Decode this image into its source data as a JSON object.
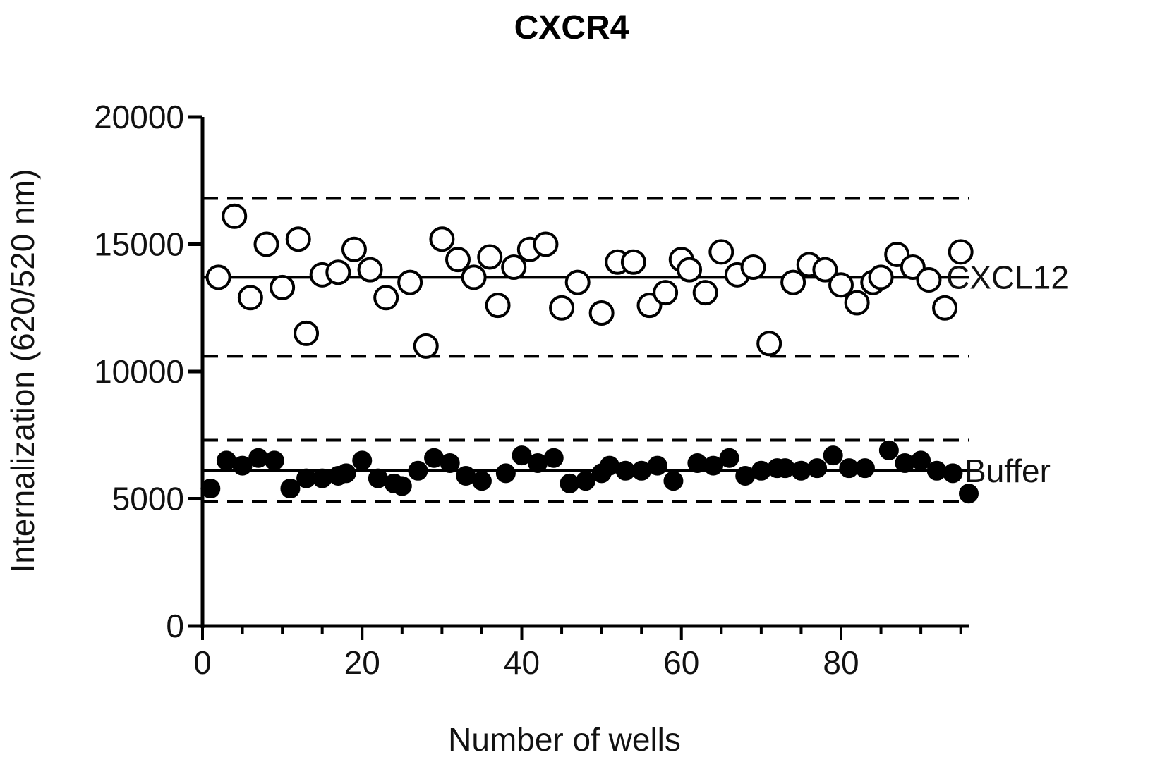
{
  "chart_data": {
    "type": "scatter",
    "title": "CXCR4",
    "xlabel": "Number of wells",
    "ylabel": "Internalization (620/520 nm)",
    "xlim": [
      0,
      96
    ],
    "ylim": [
      0,
      20000
    ],
    "x_ticks": [
      0,
      20,
      40,
      60,
      80
    ],
    "y_ticks": [
      0,
      5000,
      10000,
      15000,
      20000
    ],
    "x_tick_labels": [
      "0",
      "20",
      "40",
      "60",
      "80"
    ],
    "y_tick_labels": [
      "0",
      "5000",
      "10000",
      "15000",
      "20000"
    ],
    "grid": false,
    "legend": "none",
    "series": [
      {
        "name": "CXCL12",
        "marker": "open-circle",
        "mean": 13700,
        "bounds": [
          10600,
          16800
        ],
        "points": [
          [
            2,
            13700
          ],
          [
            4,
            16100
          ],
          [
            6,
            12900
          ],
          [
            8,
            15000
          ],
          [
            10,
            13300
          ],
          [
            12,
            15200
          ],
          [
            13,
            11500
          ],
          [
            15,
            13800
          ],
          [
            17,
            13900
          ],
          [
            19,
            14800
          ],
          [
            21,
            14000
          ],
          [
            23,
            12900
          ],
          [
            26,
            13500
          ],
          [
            28,
            11000
          ],
          [
            30,
            15200
          ],
          [
            32,
            14400
          ],
          [
            34,
            13700
          ],
          [
            36,
            14500
          ],
          [
            37,
            12600
          ],
          [
            39,
            14100
          ],
          [
            41,
            14800
          ],
          [
            43,
            15000
          ],
          [
            45,
            12500
          ],
          [
            47,
            13500
          ],
          [
            50,
            12300
          ],
          [
            52,
            14300
          ],
          [
            54,
            14300
          ],
          [
            56,
            12600
          ],
          [
            58,
            13100
          ],
          [
            60,
            14400
          ],
          [
            61,
            14000
          ],
          [
            63,
            13100
          ],
          [
            65,
            14700
          ],
          [
            67,
            13800
          ],
          [
            69,
            14100
          ],
          [
            71,
            11100
          ],
          [
            74,
            13500
          ],
          [
            76,
            14200
          ],
          [
            78,
            14000
          ],
          [
            80,
            13400
          ],
          [
            82,
            12700
          ],
          [
            84,
            13500
          ],
          [
            85,
            13700
          ],
          [
            87,
            14600
          ],
          [
            89,
            14100
          ],
          [
            91,
            13600
          ],
          [
            93,
            12500
          ],
          [
            95,
            14700
          ]
        ]
      },
      {
        "name": "Buffer",
        "marker": "filled-circle",
        "mean": 6100,
        "bounds": [
          4900,
          7300
        ],
        "points": [
          [
            1,
            5400
          ],
          [
            3,
            6500
          ],
          [
            5,
            6300
          ],
          [
            7,
            6600
          ],
          [
            9,
            6500
          ],
          [
            11,
            5400
          ],
          [
            13,
            5800
          ],
          [
            15,
            5800
          ],
          [
            17,
            5900
          ],
          [
            18,
            6000
          ],
          [
            20,
            6500
          ],
          [
            22,
            5800
          ],
          [
            24,
            5600
          ],
          [
            25,
            5500
          ],
          [
            27,
            6100
          ],
          [
            29,
            6600
          ],
          [
            31,
            6400
          ],
          [
            33,
            5900
          ],
          [
            35,
            5700
          ],
          [
            38,
            6000
          ],
          [
            40,
            6700
          ],
          [
            42,
            6400
          ],
          [
            44,
            6600
          ],
          [
            46,
            5600
          ],
          [
            48,
            5700
          ],
          [
            50,
            6000
          ],
          [
            51,
            6300
          ],
          [
            53,
            6100
          ],
          [
            55,
            6100
          ],
          [
            57,
            6300
          ],
          [
            59,
            5700
          ],
          [
            62,
            6400
          ],
          [
            64,
            6300
          ],
          [
            66,
            6600
          ],
          [
            68,
            5900
          ],
          [
            70,
            6100
          ],
          [
            72,
            6200
          ],
          [
            73,
            6200
          ],
          [
            75,
            6100
          ],
          [
            77,
            6200
          ],
          [
            79,
            6700
          ],
          [
            81,
            6200
          ],
          [
            83,
            6200
          ],
          [
            86,
            6900
          ],
          [
            88,
            6400
          ],
          [
            90,
            6500
          ],
          [
            92,
            6100
          ],
          [
            94,
            6000
          ],
          [
            96,
            5200
          ]
        ]
      }
    ]
  }
}
